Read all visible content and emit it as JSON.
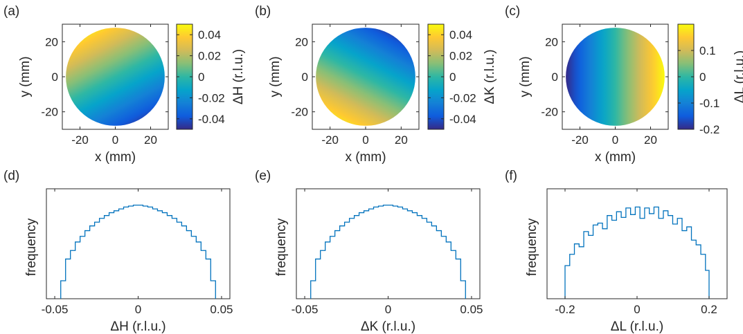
{
  "figure": {
    "panels": [
      {
        "label": "(a)"
      },
      {
        "label": "(b)"
      },
      {
        "label": "(c)"
      },
      {
        "label": "(d)"
      },
      {
        "label": "(e)"
      },
      {
        "label": "(f)"
      }
    ]
  },
  "colormap": [
    "#352a87",
    "#0f5cdd",
    "#1481d6",
    "#06a4ca",
    "#2eb7a4",
    "#87bf77",
    "#d1bb59",
    "#fec832",
    "#f9fb0e"
  ],
  "chart_data": [
    {
      "panel": "a",
      "type": "heatmap",
      "xlabel": "x (mm)",
      "ylabel": "y (mm)",
      "xlim": [
        -30,
        30
      ],
      "ylim": [
        -30,
        30
      ],
      "xticks": [
        -20,
        0,
        20
      ],
      "xtick_labels": [
        "-20",
        "0",
        "20"
      ],
      "yticks": [
        20,
        0,
        -20
      ],
      "ytick_labels": [
        "20",
        "0",
        "-20"
      ],
      "domain": "circle of radius 28 mm centered at origin",
      "field": {
        "gx": -0.000695,
        "gy": 0.001327
      },
      "colorbar": {
        "label": "ΔH (r.l.u.)",
        "clim": [
          -0.05,
          0.05
        ],
        "ticks": [
          0.04,
          0.02,
          0,
          -0.02,
          -0.04
        ],
        "tick_labels": [
          "0.04",
          "0.02",
          "0",
          "-0.02",
          "-0.04"
        ]
      }
    },
    {
      "panel": "b",
      "type": "heatmap",
      "xlabel": "x (mm)",
      "ylabel": "y (mm)",
      "xlim": [
        -30,
        30
      ],
      "ylim": [
        -30,
        30
      ],
      "xticks": [
        -20,
        0,
        20
      ],
      "xtick_labels": [
        "-20",
        "0",
        "20"
      ],
      "yticks": [
        20,
        0,
        -20
      ],
      "ytick_labels": [
        "20",
        "0",
        "-20"
      ],
      "domain": "circle of radius 28 mm centered at origin",
      "field": {
        "gx": -0.000695,
        "gy": -0.001327
      },
      "colorbar": {
        "label": "ΔK (r.l.u.)",
        "clim": [
          -0.05,
          0.05
        ],
        "ticks": [
          0.04,
          0.02,
          0,
          -0.02,
          -0.04
        ],
        "tick_labels": [
          "0.04",
          "0.02",
          "0",
          "-0.02",
          "-0.04"
        ]
      }
    },
    {
      "panel": "c",
      "type": "heatmap",
      "xlabel": "x (mm)",
      "ylabel": "y (mm)",
      "xlim": [
        -30,
        30
      ],
      "ylim": [
        -30,
        30
      ],
      "xticks": [
        -20,
        0,
        20
      ],
      "xtick_labels": [
        "-20",
        "0",
        "20"
      ],
      "yticks": [
        20,
        0,
        -20
      ],
      "ytick_labels": [
        "20",
        "0",
        "-20"
      ],
      "domain": "circle of radius 28 mm centered at origin",
      "field": {
        "gx": 0.00714,
        "gy": 0
      },
      "colorbar": {
        "label": "ΔL (r.l.u.)",
        "clim": [
          -0.2,
          0.2
        ],
        "ticks": [
          0.1,
          0,
          -0.1,
          -0.2
        ],
        "tick_labels": [
          "0.1",
          "0",
          "-0.1",
          "-0.2"
        ]
      }
    },
    {
      "panel": "d",
      "type": "bar",
      "style": "stairs",
      "xlabel": "ΔH (r.l.u.)",
      "ylabel": "frequency",
      "xlim": [
        -0.055,
        0.055
      ],
      "xticks": [
        -0.05,
        0,
        0.05
      ],
      "xtick_labels": [
        "-0.05",
        "0",
        "0.05"
      ],
      "ylim": [
        0,
        1
      ],
      "edges": [
        -0.0464,
        -0.0435,
        -0.0406,
        -0.0377,
        -0.0348,
        -0.0319,
        -0.029,
        -0.0261,
        -0.0232,
        -0.0203,
        -0.0174,
        -0.0145,
        -0.0116,
        -0.0087,
        -0.0058,
        -0.0029,
        0,
        0.0029,
        0.0058,
        0.0087,
        0.0116,
        0.0145,
        0.0174,
        0.0203,
        0.0232,
        0.0261,
        0.029,
        0.0319,
        0.0348,
        0.0377,
        0.0406,
        0.0435,
        0.0464
      ],
      "values": [
        0.19,
        0.42,
        0.51,
        0.6,
        0.66,
        0.72,
        0.77,
        0.81,
        0.85,
        0.88,
        0.91,
        0.93,
        0.95,
        0.97,
        0.98,
        0.99,
        0.99,
        0.98,
        0.97,
        0.95,
        0.93,
        0.91,
        0.88,
        0.85,
        0.81,
        0.77,
        0.72,
        0.66,
        0.6,
        0.51,
        0.42,
        0.19
      ]
    },
    {
      "panel": "e",
      "type": "bar",
      "style": "stairs",
      "xlabel": "ΔK (r.l.u.)",
      "ylabel": "frequency",
      "xlim": [
        -0.055,
        0.055
      ],
      "xticks": [
        -0.05,
        0,
        0.05
      ],
      "xtick_labels": [
        "-0.05",
        "0",
        "0.05"
      ],
      "ylim": [
        0,
        1
      ],
      "edges": [
        -0.0464,
        -0.0435,
        -0.0406,
        -0.0377,
        -0.0348,
        -0.0319,
        -0.029,
        -0.0261,
        -0.0232,
        -0.0203,
        -0.0174,
        -0.0145,
        -0.0116,
        -0.0087,
        -0.0058,
        -0.0029,
        0,
        0.0029,
        0.0058,
        0.0087,
        0.0116,
        0.0145,
        0.0174,
        0.0203,
        0.0232,
        0.0261,
        0.029,
        0.0319,
        0.0348,
        0.0377,
        0.0406,
        0.0435,
        0.0464
      ],
      "values": [
        0.19,
        0.42,
        0.51,
        0.6,
        0.66,
        0.72,
        0.77,
        0.81,
        0.85,
        0.88,
        0.91,
        0.93,
        0.95,
        0.97,
        0.98,
        0.99,
        0.99,
        0.98,
        0.97,
        0.95,
        0.93,
        0.91,
        0.88,
        0.85,
        0.81,
        0.77,
        0.72,
        0.66,
        0.6,
        0.51,
        0.42,
        0.19
      ]
    },
    {
      "panel": "f",
      "type": "bar",
      "style": "stairs",
      "xlabel": "ΔL (r.l.u.)",
      "ylabel": "frequency",
      "xlim": [
        -0.25,
        0.25
      ],
      "xticks": [
        -0.2,
        0,
        0.2
      ],
      "xtick_labels": [
        "-0.2",
        "0",
        "0.2"
      ],
      "ylim": [
        0,
        1
      ],
      "edges": [
        -0.2,
        -0.187,
        -0.174,
        -0.161,
        -0.148,
        -0.135,
        -0.122,
        -0.109,
        -0.096,
        -0.083,
        -0.07,
        -0.057,
        -0.044,
        -0.031,
        -0.018,
        -0.005,
        0.008,
        0.021,
        0.034,
        0.047,
        0.06,
        0.073,
        0.086,
        0.099,
        0.112,
        0.125,
        0.138,
        0.151,
        0.164,
        0.177,
        0.19,
        0.2
      ],
      "values": [
        0.35,
        0.47,
        0.58,
        0.55,
        0.71,
        0.67,
        0.78,
        0.8,
        0.74,
        0.88,
        0.83,
        0.92,
        0.86,
        0.96,
        0.89,
        0.97,
        0.85,
        0.96,
        0.9,
        0.97,
        0.85,
        0.93,
        0.88,
        0.79,
        0.85,
        0.72,
        0.76,
        0.62,
        0.57,
        0.47,
        0.3
      ]
    }
  ]
}
